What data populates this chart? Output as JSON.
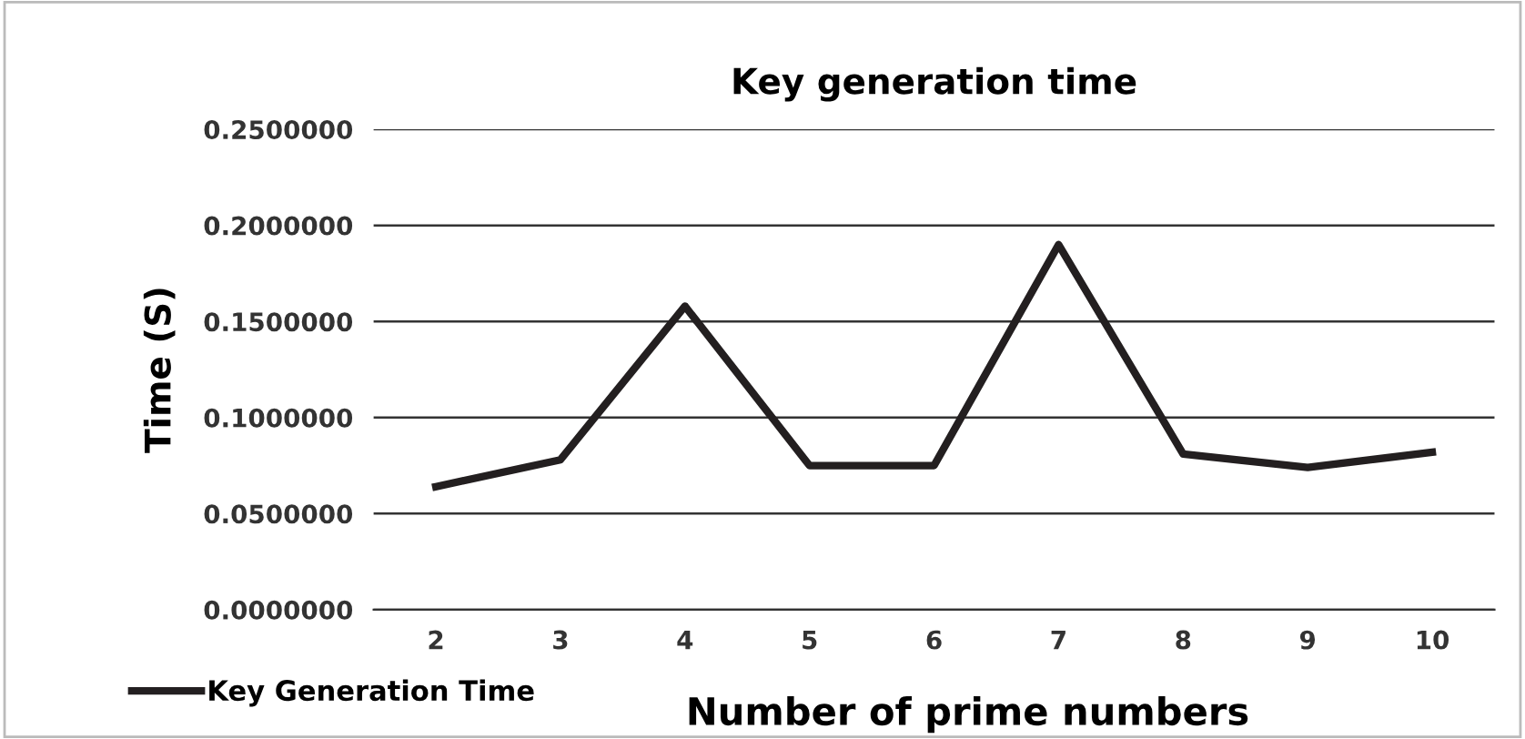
{
  "chart_data": {
    "type": "line",
    "title": "Key generation time",
    "xlabel": "Number of prime numbers",
    "ylabel": "Time (S)",
    "categories": [
      "2",
      "3",
      "4",
      "5",
      "6",
      "7",
      "8",
      "9",
      "10"
    ],
    "series": [
      {
        "name": "Key Generation Time",
        "color": "#231f20",
        "values": [
          0.064,
          0.078,
          0.158,
          0.075,
          0.075,
          0.19,
          0.081,
          0.074,
          0.082
        ]
      }
    ],
    "ylim": [
      0,
      0.25
    ],
    "yticks": [
      {
        "value": 0,
        "label": "0.0000000"
      },
      {
        "value": 0.05,
        "label": "0.0500000"
      },
      {
        "value": 0.1,
        "label": "0.1000000"
      },
      {
        "value": 0.15,
        "label": "0.1500000"
      },
      {
        "value": 0.2,
        "label": "0.2000000"
      },
      {
        "value": 0.25,
        "label": "0.2500000"
      }
    ],
    "grid": "y",
    "legend": "bottom left",
    "marker": "none",
    "line_style": "solid"
  }
}
